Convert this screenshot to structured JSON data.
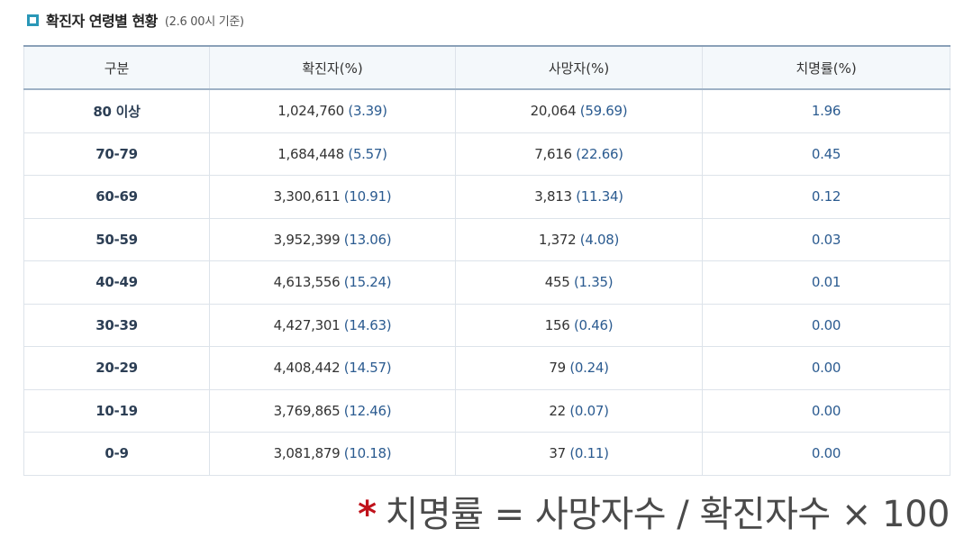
{
  "header": {
    "title": "확진자 연령별 현황",
    "note": "(2.6 00시 기준)"
  },
  "table": {
    "columns": [
      "구분",
      "확진자(%)",
      "사망자(%)",
      "치명률(%)"
    ],
    "rows": [
      {
        "age": "80 이상",
        "confirmed": "1,024,760",
        "confirmed_pct": "(3.39)",
        "deaths": "20,064",
        "deaths_pct": "(59.69)",
        "fatality": "1.96"
      },
      {
        "age": "70-79",
        "confirmed": "1,684,448",
        "confirmed_pct": "(5.57)",
        "deaths": "7,616",
        "deaths_pct": "(22.66)",
        "fatality": "0.45"
      },
      {
        "age": "60-69",
        "confirmed": "3,300,611",
        "confirmed_pct": "(10.91)",
        "deaths": "3,813",
        "deaths_pct": "(11.34)",
        "fatality": "0.12"
      },
      {
        "age": "50-59",
        "confirmed": "3,952,399",
        "confirmed_pct": "(13.06)",
        "deaths": "1,372",
        "deaths_pct": "(4.08)",
        "fatality": "0.03"
      },
      {
        "age": "40-49",
        "confirmed": "4,613,556",
        "confirmed_pct": "(15.24)",
        "deaths": "455",
        "deaths_pct": "(1.35)",
        "fatality": "0.01"
      },
      {
        "age": "30-39",
        "confirmed": "4,427,301",
        "confirmed_pct": "(14.63)",
        "deaths": "156",
        "deaths_pct": "(0.46)",
        "fatality": "0.00"
      },
      {
        "age": "20-29",
        "confirmed": "4,408,442",
        "confirmed_pct": "(14.57)",
        "deaths": "79",
        "deaths_pct": "(0.24)",
        "fatality": "0.00"
      },
      {
        "age": "10-19",
        "confirmed": "3,769,865",
        "confirmed_pct": "(12.46)",
        "deaths": "22",
        "deaths_pct": "(0.07)",
        "fatality": "0.00"
      },
      {
        "age": "0-9",
        "confirmed": "3,081,879",
        "confirmed_pct": "(10.18)",
        "deaths": "37",
        "deaths_pct": "(0.11)",
        "fatality": "0.00"
      }
    ]
  },
  "formula": {
    "star": "*",
    "text": "치명률 = 사망자수 / 확진자수 × 100"
  },
  "colors": {
    "accent": "#2a97b7",
    "value_blue": "#2b5b90",
    "star_red": "#c0121b"
  }
}
